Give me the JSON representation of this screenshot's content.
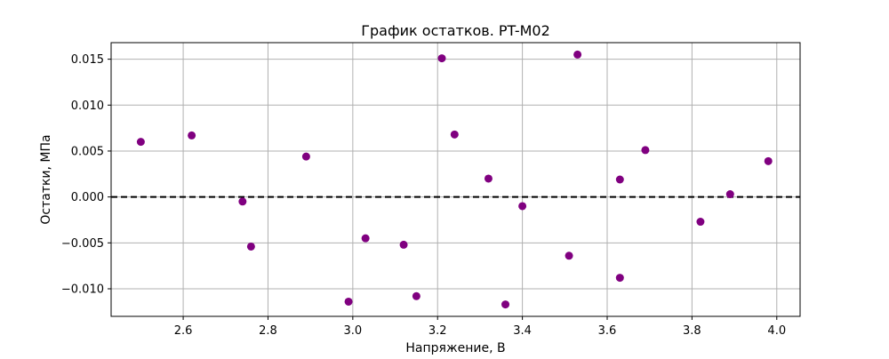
{
  "chart_data": {
    "type": "scatter",
    "title": "График остатков. PT-M02",
    "xlabel": "Напряжение, В",
    "ylabel": "Остатки, МПа",
    "xlim": [
      2.43,
      4.055
    ],
    "ylim": [
      -0.013,
      0.0168
    ],
    "x_ticks": [
      {
        "value": 2.6,
        "label": "2.6"
      },
      {
        "value": 2.8,
        "label": "2.8"
      },
      {
        "value": 3.0,
        "label": "3.0"
      },
      {
        "value": 3.2,
        "label": "3.2"
      },
      {
        "value": 3.4,
        "label": "3.4"
      },
      {
        "value": 3.6,
        "label": "3.6"
      },
      {
        "value": 3.8,
        "label": "3.8"
      },
      {
        "value": 4.0,
        "label": "4.0"
      }
    ],
    "y_ticks": [
      {
        "value": -0.01,
        "label": "−0.010"
      },
      {
        "value": -0.005,
        "label": "−0.005"
      },
      {
        "value": 0.0,
        "label": "0.000"
      },
      {
        "value": 0.005,
        "label": "0.005"
      },
      {
        "value": 0.01,
        "label": "0.010"
      },
      {
        "value": 0.015,
        "label": "0.015"
      }
    ],
    "grid": true,
    "reference_line": {
      "y": 0,
      "style": "dashed",
      "color": "#000000"
    },
    "marker_color": "#800080",
    "points": [
      {
        "x": 2.5,
        "y": 0.006
      },
      {
        "x": 2.62,
        "y": 0.0067
      },
      {
        "x": 2.74,
        "y": -0.0005
      },
      {
        "x": 2.76,
        "y": -0.0054
      },
      {
        "x": 2.89,
        "y": 0.0044
      },
      {
        "x": 2.99,
        "y": -0.0114
      },
      {
        "x": 3.03,
        "y": -0.0045
      },
      {
        "x": 3.12,
        "y": -0.0052
      },
      {
        "x": 3.15,
        "y": -0.0108
      },
      {
        "x": 3.21,
        "y": 0.0151
      },
      {
        "x": 3.24,
        "y": 0.0068
      },
      {
        "x": 3.32,
        "y": 0.002
      },
      {
        "x": 3.36,
        "y": -0.0117
      },
      {
        "x": 3.4,
        "y": -0.001
      },
      {
        "x": 3.51,
        "y": -0.0064
      },
      {
        "x": 3.53,
        "y": 0.0155
      },
      {
        "x": 3.63,
        "y": 0.0019
      },
      {
        "x": 3.63,
        "y": -0.0088
      },
      {
        "x": 3.69,
        "y": 0.0051
      },
      {
        "x": 3.82,
        "y": -0.0027
      },
      {
        "x": 3.89,
        "y": 0.0003
      },
      {
        "x": 3.98,
        "y": 0.0039
      }
    ]
  }
}
